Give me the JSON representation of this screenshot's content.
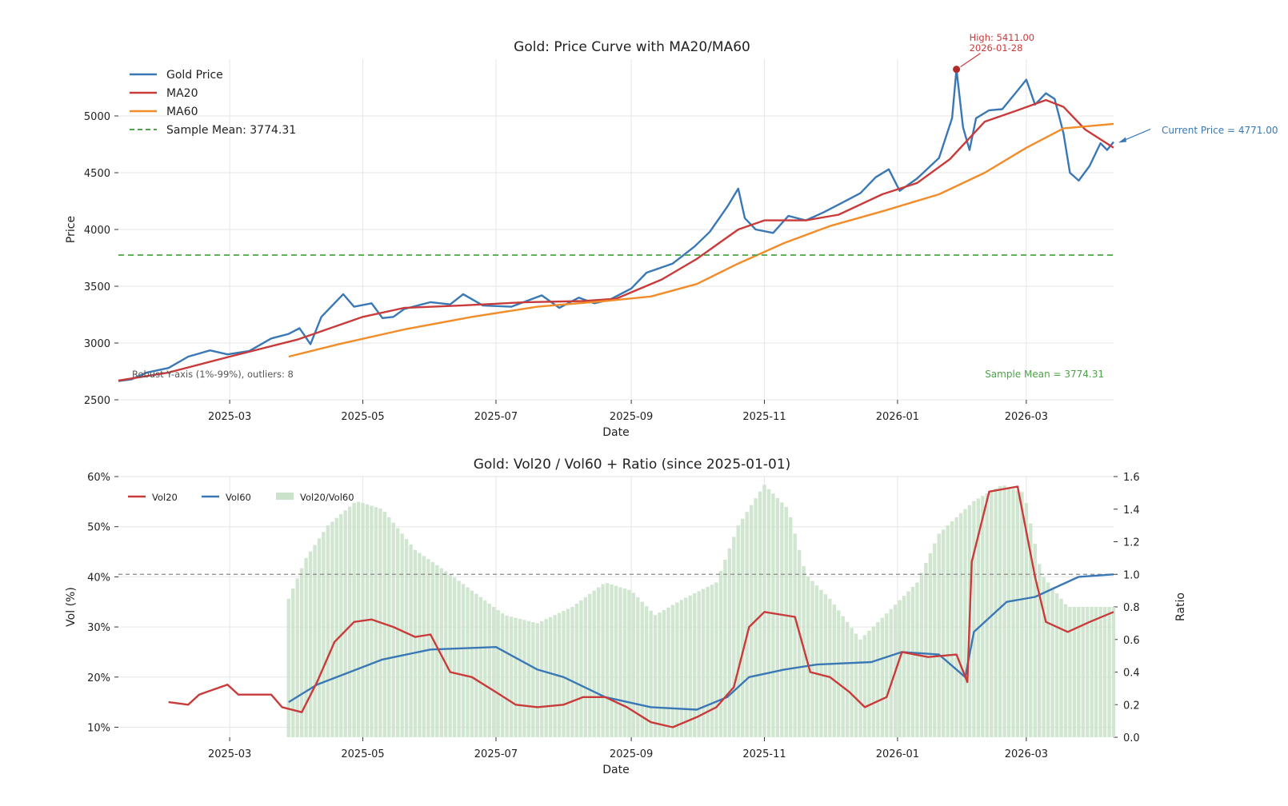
{
  "chart_data": [
    {
      "type": "line",
      "title": "Gold: Price Curve with MA20/MA60",
      "xlabel": "Date",
      "ylabel": "Price",
      "ylim": [
        2500,
        5500
      ],
      "xlim": [
        "2025-01-09",
        "2026-04-10"
      ],
      "x_ticks": [
        "2025-03",
        "2025-05",
        "2025-07",
        "2025-09",
        "2025-11",
        "2026-01",
        "2026-03"
      ],
      "y_ticks": [
        "2500",
        "3000",
        "3500",
        "4000",
        "4500",
        "5000"
      ],
      "grid": true,
      "legend_position": "top-left",
      "series": [
        {
          "name": "Gold Price",
          "color": "#3a78b5",
          "points": [
            [
              "2025-01-09",
              2665
            ],
            [
              "2025-01-15",
              2680
            ],
            [
              "2025-01-22",
              2740
            ],
            [
              "2025-02-01",
              2780
            ],
            [
              "2025-02-10",
              2880
            ],
            [
              "2025-02-20",
              2935
            ],
            [
              "2025-02-28",
              2900
            ],
            [
              "2025-03-10",
              2930
            ],
            [
              "2025-03-20",
              3040
            ],
            [
              "2025-03-28",
              3080
            ],
            [
              "2025-04-02",
              3130
            ],
            [
              "2025-04-07",
              2990
            ],
            [
              "2025-04-12",
              3230
            ],
            [
              "2025-04-22",
              3430
            ],
            [
              "2025-04-27",
              3320
            ],
            [
              "2025-05-05",
              3350
            ],
            [
              "2025-05-10",
              3220
            ],
            [
              "2025-05-15",
              3230
            ],
            [
              "2025-05-20",
              3300
            ],
            [
              "2025-06-01",
              3360
            ],
            [
              "2025-06-10",
              3340
            ],
            [
              "2025-06-16",
              3430
            ],
            [
              "2025-06-25",
              3330
            ],
            [
              "2025-07-08",
              3320
            ],
            [
              "2025-07-22",
              3420
            ],
            [
              "2025-07-30",
              3310
            ],
            [
              "2025-08-08",
              3400
            ],
            [
              "2025-08-15",
              3350
            ],
            [
              "2025-08-22",
              3380
            ],
            [
              "2025-09-01",
              3480
            ],
            [
              "2025-09-08",
              3620
            ],
            [
              "2025-09-20",
              3700
            ],
            [
              "2025-09-30",
              3850
            ],
            [
              "2025-10-07",
              3980
            ],
            [
              "2025-10-15",
              4200
            ],
            [
              "2025-10-20",
              4360
            ],
            [
              "2025-10-23",
              4100
            ],
            [
              "2025-10-28",
              4000
            ],
            [
              "2025-11-05",
              3970
            ],
            [
              "2025-11-12",
              4120
            ],
            [
              "2025-11-20",
              4080
            ],
            [
              "2025-11-28",
              4150
            ],
            [
              "2025-12-05",
              4220
            ],
            [
              "2025-12-15",
              4320
            ],
            [
              "2025-12-22",
              4460
            ],
            [
              "2025-12-28",
              4530
            ],
            [
              "2026-01-02",
              4340
            ],
            [
              "2026-01-10",
              4450
            ],
            [
              "2026-01-20",
              4630
            ],
            [
              "2026-01-26",
              4980
            ],
            [
              "2026-01-28",
              5411
            ],
            [
              "2026-01-31",
              4900
            ],
            [
              "2026-02-03",
              4700
            ],
            [
              "2026-02-06",
              4980
            ],
            [
              "2026-02-12",
              5050
            ],
            [
              "2026-02-18",
              5060
            ],
            [
              "2026-02-24",
              5200
            ],
            [
              "2026-03-01",
              5320
            ],
            [
              "2026-03-05",
              5100
            ],
            [
              "2026-03-10",
              5200
            ],
            [
              "2026-03-14",
              5150
            ],
            [
              "2026-03-18",
              4850
            ],
            [
              "2026-03-21",
              4500
            ],
            [
              "2026-03-25",
              4430
            ],
            [
              "2026-03-30",
              4560
            ],
            [
              "2026-04-04",
              4760
            ],
            [
              "2026-04-07",
              4700
            ],
            [
              "2026-04-10",
              4771
            ]
          ]
        },
        {
          "name": "MA20",
          "color": "#c93a3a",
          "points": [
            [
              "2025-01-09",
              2670
            ],
            [
              "2025-02-01",
              2740
            ],
            [
              "2025-03-01",
              2880
            ],
            [
              "2025-04-01",
              3030
            ],
            [
              "2025-05-01",
              3230
            ],
            [
              "2025-05-20",
              3310
            ],
            [
              "2025-06-15",
              3330
            ],
            [
              "2025-07-15",
              3360
            ],
            [
              "2025-08-10",
              3370
            ],
            [
              "2025-08-25",
              3390
            ],
            [
              "2025-09-15",
              3560
            ],
            [
              "2025-10-01",
              3740
            ],
            [
              "2025-10-20",
              4000
            ],
            [
              "2025-11-01",
              4080
            ],
            [
              "2025-11-20",
              4080
            ],
            [
              "2025-12-05",
              4130
            ],
            [
              "2025-12-25",
              4310
            ],
            [
              "2026-01-10",
              4410
            ],
            [
              "2026-01-25",
              4620
            ],
            [
              "2026-02-10",
              4950
            ],
            [
              "2026-02-25",
              5050
            ],
            [
              "2026-03-10",
              5140
            ],
            [
              "2026-03-18",
              5080
            ],
            [
              "2026-03-28",
              4880
            ],
            [
              "2026-04-10",
              4720
            ]
          ]
        },
        {
          "name": "MA60",
          "color": "#f28c28",
          "points": [
            [
              "2025-03-28",
              2880
            ],
            [
              "2025-04-20",
              2990
            ],
            [
              "2025-05-20",
              3120
            ],
            [
              "2025-06-20",
              3230
            ],
            [
              "2025-07-20",
              3320
            ],
            [
              "2025-08-20",
              3370
            ],
            [
              "2025-09-10",
              3410
            ],
            [
              "2025-10-01",
              3520
            ],
            [
              "2025-10-20",
              3700
            ],
            [
              "2025-11-10",
              3880
            ],
            [
              "2025-12-01",
              4030
            ],
            [
              "2025-12-25",
              4160
            ],
            [
              "2026-01-20",
              4310
            ],
            [
              "2026-02-10",
              4500
            ],
            [
              "2026-03-01",
              4720
            ],
            [
              "2026-03-18",
              4890
            ],
            [
              "2026-04-10",
              4930
            ]
          ]
        },
        {
          "name": "Sample Mean: 3774.31",
          "color": "#4ea24a",
          "dashed": true,
          "points": [
            [
              "2025-01-09",
              3774.31
            ],
            [
              "2026-04-10",
              3774.31
            ]
          ]
        }
      ],
      "annotations": [
        {
          "text": [
            "High: 5411.00",
            "2026-01-28"
          ],
          "x": "2026-01-28",
          "y": 5411,
          "color": "#c93a3a",
          "dot_color": "#b22a2a"
        },
        {
          "text": [
            "Current Price = 4771.00"
          ],
          "x": "2026-04-10",
          "y": 4771,
          "color": "#3a78b5"
        },
        {
          "text": [
            "Sample Mean = 3774.31"
          ],
          "color": "#4ea24a",
          "placement": "bottom-right"
        },
        {
          "text": [
            "Robust Y-axis (1%-99%), outliers: 8"
          ],
          "color": "#555555",
          "placement": "bottom-left"
        }
      ]
    },
    {
      "type": "line",
      "title": "Gold: Vol20 / Vol60 + Ratio (since 2025-01-01)",
      "xlabel": "Date",
      "ylabel": "Vol (%)",
      "y2label": "Ratio",
      "ylim": [
        8,
        60
      ],
      "y2lim": [
        0,
        1.6
      ],
      "xlim": [
        "2025-01-09",
        "2026-04-10"
      ],
      "x_ticks": [
        "2025-03",
        "2025-05",
        "2025-07",
        "2025-09",
        "2025-11",
        "2026-01",
        "2026-03"
      ],
      "y_ticks": [
        "10%",
        "20%",
        "30%",
        "40%",
        "50%",
        "60%"
      ],
      "y2_ticks": [
        "0.0",
        "0.2",
        "0.4",
        "0.6",
        "0.8",
        "1.0",
        "1.2",
        "1.4",
        "1.6"
      ],
      "reference_line": {
        "y2": 1.0,
        "color": "#888888",
        "dashed": true
      },
      "grid": true,
      "legend_position": "top-left",
      "series": [
        {
          "name": "Vol20",
          "color": "#c93a3a",
          "axis": "left",
          "points": [
            [
              "2025-02-01",
              15
            ],
            [
              "2025-02-10",
              14.5
            ],
            [
              "2025-02-15",
              16.5
            ],
            [
              "2025-02-28",
              18.5
            ],
            [
              "2025-03-05",
              16.5
            ],
            [
              "2025-03-20",
              16.5
            ],
            [
              "2025-03-25",
              14
            ],
            [
              "2025-04-03",
              13
            ],
            [
              "2025-04-10",
              19
            ],
            [
              "2025-04-18",
              27
            ],
            [
              "2025-04-27",
              31
            ],
            [
              "2025-05-05",
              31.5
            ],
            [
              "2025-05-15",
              30
            ],
            [
              "2025-05-25",
              28
            ],
            [
              "2025-06-01",
              28.5
            ],
            [
              "2025-06-10",
              21
            ],
            [
              "2025-06-20",
              20
            ],
            [
              "2025-07-01",
              17
            ],
            [
              "2025-07-10",
              14.5
            ],
            [
              "2025-07-20",
              14
            ],
            [
              "2025-08-01",
              14.5
            ],
            [
              "2025-08-10",
              16
            ],
            [
              "2025-08-20",
              16
            ],
            [
              "2025-08-30",
              14
            ],
            [
              "2025-09-10",
              11
            ],
            [
              "2025-09-20",
              10
            ],
            [
              "2025-10-01",
              12
            ],
            [
              "2025-10-10",
              14
            ],
            [
              "2025-10-18",
              18
            ],
            [
              "2025-10-25",
              30
            ],
            [
              "2025-11-01",
              33
            ],
            [
              "2025-11-15",
              32
            ],
            [
              "2025-11-22",
              21
            ],
            [
              "2025-12-01",
              20
            ],
            [
              "2025-12-10",
              17
            ],
            [
              "2025-12-17",
              14
            ],
            [
              "2025-12-27",
              16
            ],
            [
              "2026-01-03",
              25
            ],
            [
              "2026-01-15",
              24
            ],
            [
              "2026-01-28",
              24.5
            ],
            [
              "2026-02-02",
              19
            ],
            [
              "2026-02-04",
              43
            ],
            [
              "2026-02-12",
              57
            ],
            [
              "2026-02-25",
              58
            ],
            [
              "2026-03-05",
              40
            ],
            [
              "2026-03-10",
              31
            ],
            [
              "2026-03-20",
              29
            ],
            [
              "2026-03-30",
              31
            ],
            [
              "2026-04-10",
              33
            ]
          ]
        },
        {
          "name": "Vol60",
          "color": "#3a78b5",
          "axis": "left",
          "points": [
            [
              "2025-03-28",
              15
            ],
            [
              "2025-04-10",
              18.5
            ],
            [
              "2025-04-25",
              21
            ],
            [
              "2025-05-10",
              23.5
            ],
            [
              "2025-06-01",
              25.5
            ],
            [
              "2025-07-01",
              26
            ],
            [
              "2025-07-20",
              21.5
            ],
            [
              "2025-08-01",
              20
            ],
            [
              "2025-08-20",
              16
            ],
            [
              "2025-09-10",
              14
            ],
            [
              "2025-10-01",
              13.5
            ],
            [
              "2025-10-15",
              16
            ],
            [
              "2025-10-25",
              20
            ],
            [
              "2025-11-10",
              21.5
            ],
            [
              "2025-11-25",
              22.5
            ],
            [
              "2025-12-20",
              23
            ],
            [
              "2026-01-03",
              25
            ],
            [
              "2026-01-20",
              24.5
            ],
            [
              "2026-02-01",
              20
            ],
            [
              "2026-02-05",
              29
            ],
            [
              "2026-02-20",
              35
            ],
            [
              "2026-03-05",
              36
            ],
            [
              "2026-03-15",
              38
            ],
            [
              "2026-03-25",
              40
            ],
            [
              "2026-04-10",
              40.5
            ]
          ]
        },
        {
          "name": "Vol20/Vol60",
          "type": "bar",
          "color": "#c9e2c9",
          "axis": "right",
          "points": [
            [
              "2025-03-28",
              0.85
            ],
            [
              "2025-04-05",
              1.1
            ],
            [
              "2025-04-15",
              1.3
            ],
            [
              "2025-04-28",
              1.45
            ],
            [
              "2025-05-10",
              1.4
            ],
            [
              "2025-05-25",
              1.15
            ],
            [
              "2025-06-10",
              1.0
            ],
            [
              "2025-06-25",
              0.85
            ],
            [
              "2025-07-05",
              0.75
            ],
            [
              "2025-07-20",
              0.7
            ],
            [
              "2025-08-05",
              0.8
            ],
            [
              "2025-08-20",
              0.95
            ],
            [
              "2025-09-01",
              0.9
            ],
            [
              "2025-09-12",
              0.75
            ],
            [
              "2025-09-25",
              0.85
            ],
            [
              "2025-10-10",
              0.95
            ],
            [
              "2025-10-20",
              1.3
            ],
            [
              "2025-11-01",
              1.55
            ],
            [
              "2025-11-12",
              1.4
            ],
            [
              "2025-11-20",
              1.0
            ],
            [
              "2025-12-01",
              0.85
            ],
            [
              "2025-12-15",
              0.6
            ],
            [
              "2025-12-30",
              0.8
            ],
            [
              "2026-01-10",
              0.95
            ],
            [
              "2026-01-20",
              1.25
            ],
            [
              "2026-01-28",
              1.35
            ],
            [
              "2026-02-05",
              1.45
            ],
            [
              "2026-02-18",
              1.55
            ],
            [
              "2026-02-28",
              1.5
            ],
            [
              "2026-03-08",
              1.0
            ],
            [
              "2026-03-20",
              0.8
            ],
            [
              "2026-04-10",
              0.8
            ]
          ]
        }
      ]
    }
  ]
}
